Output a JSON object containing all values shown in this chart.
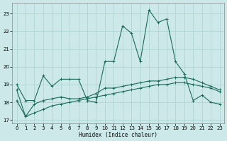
{
  "xlabel": "Humidex (Indice chaleur)",
  "bg_color": "#cce8e8",
  "grid_color": "#b0d4d4",
  "line_color": "#1a6b5a",
  "x_ticks": [
    0,
    1,
    2,
    3,
    4,
    5,
    6,
    7,
    8,
    9,
    10,
    11,
    12,
    13,
    14,
    15,
    16,
    17,
    18,
    19,
    20,
    21,
    22,
    23
  ],
  "ylim": [
    16.8,
    23.6
  ],
  "xlim": [
    -0.5,
    23.5
  ],
  "yticks": [
    17,
    18,
    19,
    20,
    21,
    22,
    23
  ],
  "line1_x": [
    0,
    1,
    2,
    3,
    4,
    5,
    6,
    7,
    8,
    9,
    10,
    11,
    12,
    13,
    14,
    15,
    16,
    17,
    18,
    19,
    20,
    21,
    22,
    23
  ],
  "line1_y": [
    19.0,
    18.1,
    18.1,
    19.5,
    18.9,
    19.3,
    19.3,
    19.3,
    18.1,
    18.0,
    20.3,
    20.3,
    22.3,
    21.9,
    20.3,
    23.2,
    22.5,
    22.7,
    20.3,
    19.6,
    18.1,
    18.4,
    18.0,
    17.9
  ],
  "line2_x": [
    0,
    1,
    2,
    3,
    4,
    5,
    6,
    7,
    8,
    9,
    10,
    11,
    12,
    13,
    14,
    15,
    16,
    17,
    18,
    19,
    20,
    21,
    22,
    23
  ],
  "line2_y": [
    18.7,
    17.2,
    17.9,
    18.1,
    18.2,
    18.3,
    18.2,
    18.2,
    18.3,
    18.5,
    18.8,
    18.8,
    18.9,
    19.0,
    19.1,
    19.2,
    19.2,
    19.3,
    19.4,
    19.4,
    19.3,
    19.1,
    18.9,
    18.7
  ],
  "line3_x": [
    0,
    1,
    2,
    3,
    4,
    5,
    6,
    7,
    8,
    9,
    10,
    11,
    12,
    13,
    14,
    15,
    16,
    17,
    18,
    19,
    20,
    21,
    22,
    23
  ],
  "line3_y": [
    18.1,
    17.2,
    17.4,
    17.6,
    17.8,
    17.9,
    18.0,
    18.1,
    18.2,
    18.3,
    18.4,
    18.5,
    18.6,
    18.7,
    18.8,
    18.9,
    19.0,
    19.0,
    19.1,
    19.1,
    19.0,
    18.9,
    18.8,
    18.6
  ]
}
